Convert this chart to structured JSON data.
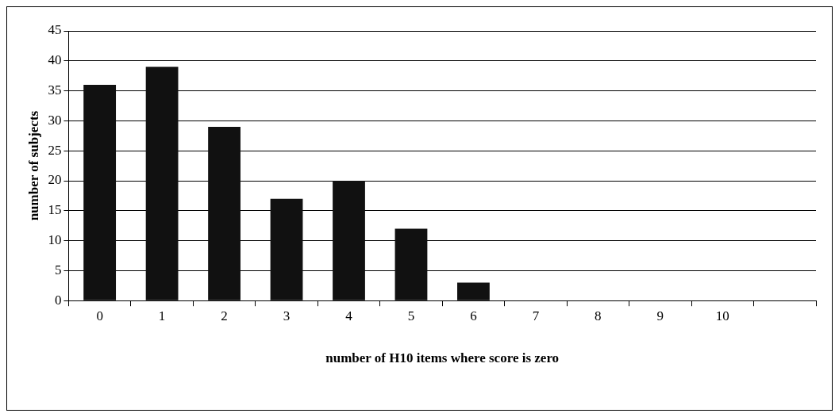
{
  "chart_data": {
    "type": "bar",
    "xlabel": "number of H10 items where score is zero",
    "ylabel": "number of subjects",
    "categories": [
      "0",
      "1",
      "2",
      "3",
      "4",
      "5",
      "6",
      "7",
      "8",
      "9",
      "10",
      null
    ],
    "values": [
      36,
      39,
      29,
      17,
      20,
      12,
      3,
      0,
      0,
      0,
      0,
      null
    ],
    "color": "#111111",
    "ylim": [
      0,
      45
    ],
    "yticks": [
      0,
      5,
      10,
      15,
      20,
      25,
      30,
      35,
      40,
      45
    ],
    "grid": "y",
    "legend": false
  }
}
